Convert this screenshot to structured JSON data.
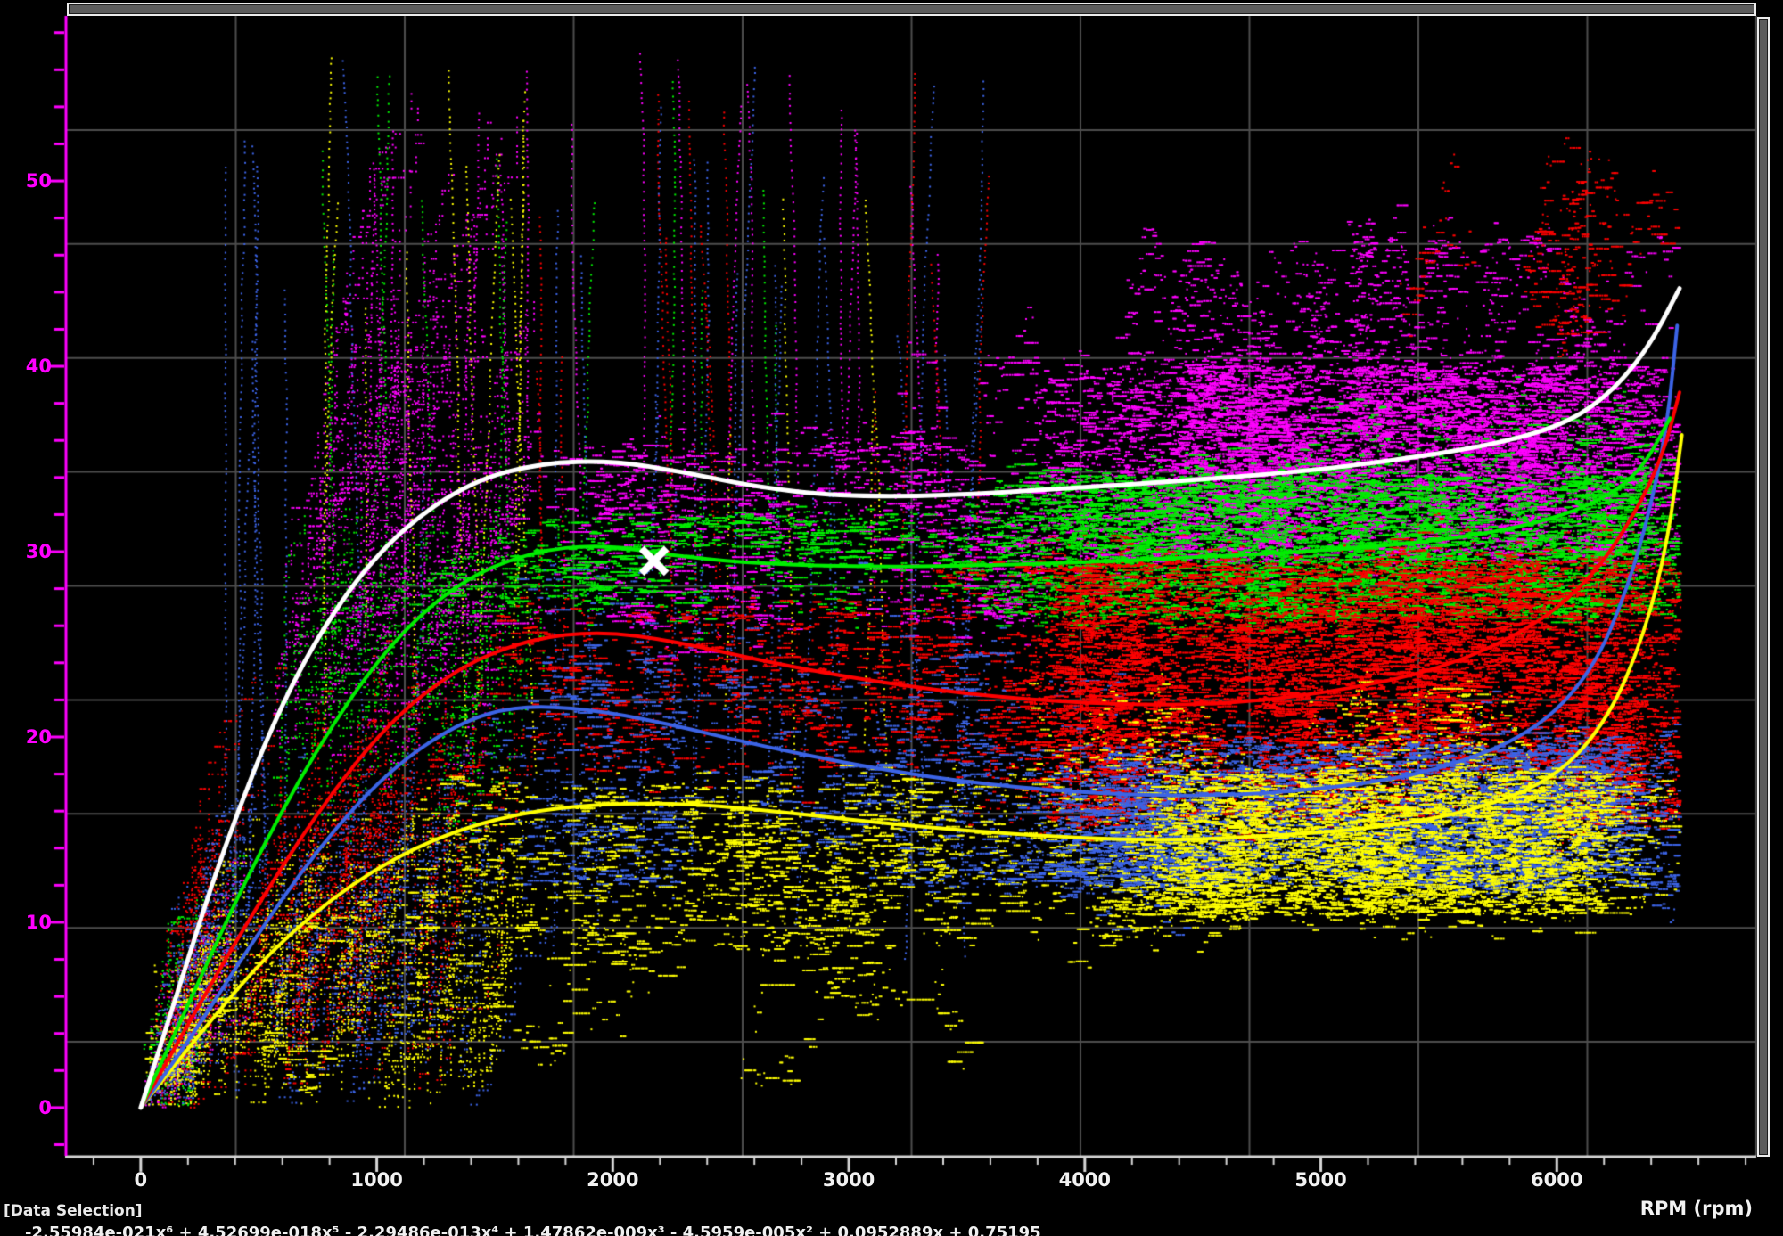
{
  "window": {
    "data_selection_label": "[Data Selection]",
    "formula": "-2.55984e-021x⁶ + 4.52699e-018x⁵ - 2.29486e-013x⁴ + 1.47862e-009x³ - 4.5959e-005x² + 0.0952889x + 0.75195"
  },
  "chart_data": {
    "type": "scatter",
    "title": "",
    "xlabel": "RPM (rpm)",
    "ylabel": "",
    "xlim": [
      -313,
      6845
    ],
    "ylim": [
      -2.6,
      58.9
    ],
    "x_ticks": [
      0,
      1000,
      2000,
      3000,
      4000,
      5000,
      6000
    ],
    "x_minor_step": 200,
    "y_ticks": [
      0,
      10,
      20,
      30,
      40,
      50
    ],
    "y_minor_step": 2,
    "grid": {
      "rows": 10,
      "cols": 10,
      "color": "#4d4d4d"
    },
    "axis_colors": {
      "x": "#d6d6d6",
      "y": "#ff00ff"
    },
    "palette": {
      "magenta": "#ff00ff",
      "green": "#00ee00",
      "red": "#ff0000",
      "blue": "#3c64e6",
      "yellow": "#ffff00",
      "white": "#ffffff"
    },
    "marker": {
      "shape": "x",
      "color": "#ffffff",
      "x": 2175,
      "y": 29.5
    },
    "trend_lines": [
      {
        "name": "yellow-trend",
        "color": "yellow",
        "width": 4,
        "points": [
          [
            0,
            0
          ],
          [
            250,
            4
          ],
          [
            550,
            8.5
          ],
          [
            900,
            12.2
          ],
          [
            1250,
            14.6
          ],
          [
            1600,
            15.9
          ],
          [
            1950,
            16.4
          ],
          [
            2350,
            16.4
          ],
          [
            2750,
            15.9
          ],
          [
            3250,
            15.2
          ],
          [
            3750,
            14.7
          ],
          [
            4250,
            14.4
          ],
          [
            4750,
            14.6
          ],
          [
            5250,
            15.1
          ],
          [
            5650,
            16
          ],
          [
            6000,
            17.8
          ],
          [
            6220,
            21
          ],
          [
            6370,
            25.5
          ],
          [
            6470,
            30.5
          ],
          [
            6530,
            36.3
          ]
        ]
      },
      {
        "name": "blue-trend",
        "color": "blue",
        "width": 4,
        "points": [
          [
            0,
            0
          ],
          [
            200,
            3.5
          ],
          [
            450,
            8.5
          ],
          [
            750,
            14
          ],
          [
            1050,
            18.2
          ],
          [
            1350,
            20.8
          ],
          [
            1600,
            21.7
          ],
          [
            1900,
            21.5
          ],
          [
            2200,
            20.8
          ],
          [
            2600,
            19.6
          ],
          [
            3100,
            18.3
          ],
          [
            3600,
            17.4
          ],
          [
            4100,
            16.9
          ],
          [
            4600,
            16.8
          ],
          [
            5100,
            17.3
          ],
          [
            5500,
            18.2
          ],
          [
            5900,
            20.2
          ],
          [
            6150,
            23.5
          ],
          [
            6300,
            28
          ],
          [
            6400,
            32.5
          ],
          [
            6470,
            37
          ],
          [
            6510,
            42.2
          ]
        ]
      },
      {
        "name": "red-trend",
        "color": "red",
        "width": 4,
        "points": [
          [
            0,
            0
          ],
          [
            200,
            4.5
          ],
          [
            450,
            10
          ],
          [
            750,
            16
          ],
          [
            1050,
            20.8
          ],
          [
            1350,
            23.8
          ],
          [
            1650,
            25.3
          ],
          [
            1950,
            25.7
          ],
          [
            2250,
            25.2
          ],
          [
            2600,
            24.2
          ],
          [
            3000,
            23.2
          ],
          [
            3500,
            22.3
          ],
          [
            4000,
            21.8
          ],
          [
            4500,
            21.7
          ],
          [
            5000,
            22.3
          ],
          [
            5500,
            23.6
          ],
          [
            5900,
            25.9
          ],
          [
            6150,
            28.6
          ],
          [
            6330,
            32
          ],
          [
            6450,
            35.2
          ],
          [
            6520,
            38.6
          ]
        ]
      },
      {
        "name": "green-trend",
        "color": "green",
        "width": 4,
        "points": [
          [
            0,
            0
          ],
          [
            200,
            5.5
          ],
          [
            450,
            12.5
          ],
          [
            750,
            19.5
          ],
          [
            1050,
            25
          ],
          [
            1350,
            28.4
          ],
          [
            1650,
            30
          ],
          [
            1950,
            30.4
          ],
          [
            2250,
            29.8
          ],
          [
            2550,
            29.4
          ],
          [
            2950,
            29.2
          ],
          [
            3450,
            29.2
          ],
          [
            3950,
            29.4
          ],
          [
            4450,
            29.7
          ],
          [
            4950,
            30
          ],
          [
            5450,
            30.5
          ],
          [
            5850,
            31.3
          ],
          [
            6150,
            32.5
          ],
          [
            6350,
            34.2
          ],
          [
            6480,
            37.2
          ]
        ]
      },
      {
        "name": "white-trend",
        "color": "white",
        "width": 5,
        "points": [
          [
            0,
            0
          ],
          [
            150,
            6
          ],
          [
            350,
            14
          ],
          [
            600,
            22
          ],
          [
            850,
            27.5
          ],
          [
            1100,
            31.2
          ],
          [
            1400,
            33.8
          ],
          [
            1700,
            34.8
          ],
          [
            2000,
            34.9
          ],
          [
            2300,
            34.3
          ],
          [
            2600,
            33.5
          ],
          [
            2950,
            33
          ],
          [
            3400,
            33
          ],
          [
            3900,
            33.4
          ],
          [
            4400,
            33.8
          ],
          [
            4900,
            34.3
          ],
          [
            5300,
            34.9
          ],
          [
            5700,
            35.7
          ],
          [
            6000,
            36.7
          ],
          [
            6200,
            38.2
          ],
          [
            6380,
            40.8
          ],
          [
            6520,
            44.2
          ]
        ]
      }
    ],
    "scatter_clusters": [
      {
        "color": "magenta",
        "kind": "rise",
        "count": 18,
        "x": [
          20,
          220
        ],
        "y": [
          0,
          2
        ],
        "yend": [
          4,
          14
        ]
      },
      {
        "color": "green",
        "kind": "rise",
        "count": 18,
        "x": [
          20,
          220
        ],
        "y": [
          0,
          2
        ],
        "yend": [
          4,
          14
        ]
      },
      {
        "color": "red",
        "kind": "rise",
        "count": 22,
        "x": [
          20,
          230
        ],
        "y": [
          0,
          2
        ],
        "yend": [
          4,
          16
        ]
      },
      {
        "color": "blue",
        "kind": "rise",
        "count": 22,
        "x": [
          20,
          230
        ],
        "y": [
          0,
          2
        ],
        "yend": [
          4,
          14
        ]
      },
      {
        "color": "yellow",
        "kind": "rise",
        "count": 25,
        "x": [
          20,
          240
        ],
        "y": [
          0,
          2
        ],
        "yend": [
          3,
          12
        ]
      },
      {
        "color": "magenta",
        "kind": "rise",
        "count": 55,
        "x": [
          550,
          1450
        ],
        "y": [
          17,
          27
        ],
        "yend": [
          30,
          44
        ]
      },
      {
        "color": "magenta",
        "kind": "rise",
        "count": 12,
        "x": [
          600,
          1150
        ],
        "y": [
          26,
          34
        ],
        "yend": [
          45,
          56
        ]
      },
      {
        "color": "green",
        "kind": "rise",
        "count": 45,
        "x": [
          520,
          1500
        ],
        "y": [
          14,
          24
        ],
        "yend": [
          27,
          33
        ]
      },
      {
        "color": "red",
        "kind": "rise",
        "count": 60,
        "x": [
          120,
          1300
        ],
        "y": [
          1,
          8
        ],
        "yend": [
          15,
          26
        ]
      },
      {
        "color": "blue",
        "kind": "rise",
        "count": 60,
        "x": [
          120,
          1400
        ],
        "y": [
          0,
          6
        ],
        "yend": [
          10,
          21
        ]
      },
      {
        "color": "yellow",
        "kind": "rise",
        "count": 70,
        "x": [
          120,
          1500
        ],
        "y": [
          0,
          5
        ],
        "yend": [
          8,
          16.5
        ]
      },
      {
        "color": "magenta",
        "kind": "wisp",
        "count": 20,
        "x": [
          850,
          3400
        ],
        "y": [
          30,
          36
        ],
        "yend": [
          44,
          57
        ]
      },
      {
        "color": "green",
        "kind": "wisp",
        "count": 12,
        "x": [
          700,
          3100
        ],
        "y": [
          29,
          33
        ],
        "yend": [
          42,
          56
        ]
      },
      {
        "color": "red",
        "kind": "wisp",
        "count": 13,
        "x": [
          1400,
          3600
        ],
        "y": [
          24,
          30
        ],
        "yend": [
          38,
          56
        ]
      },
      {
        "color": "blue",
        "kind": "wisp",
        "count": 28,
        "x": [
          300,
          3500
        ],
        "y": [
          8,
          16
        ],
        "yend": [
          30,
          57
        ]
      },
      {
        "color": "yellow",
        "kind": "wisp",
        "count": 10,
        "x": [
          700,
          1700
        ],
        "y": [
          18,
          28
        ],
        "yend": [
          42,
          57
        ]
      },
      {
        "color": "yellow",
        "kind": "wisp",
        "count": 4,
        "x": [
          2400,
          3200
        ],
        "y": [
          16,
          22
        ],
        "yend": [
          35,
          50
        ]
      },
      {
        "color": "magenta",
        "kind": "wander",
        "count": 48,
        "x": [
          1400,
          3900
        ],
        "y": [
          27.5,
          34.5
        ],
        "len": [
          300,
          1400
        ],
        "pjump": 0.22,
        "vjump": [
          0.3,
          2.2
        ]
      },
      {
        "color": "green",
        "kind": "wander",
        "count": 42,
        "x": [
          1500,
          3850
        ],
        "y": [
          27.5,
          31.5
        ],
        "len": [
          300,
          1200
        ],
        "pjump": 0.2,
        "vjump": [
          0.3,
          1.6
        ]
      },
      {
        "color": "red",
        "kind": "wander",
        "count": 45,
        "x": [
          1500,
          3850
        ],
        "y": [
          19.5,
          26
        ],
        "len": [
          300,
          1200
        ],
        "pjump": 0.22,
        "vjump": [
          0.3,
          2
        ]
      },
      {
        "color": "blue",
        "kind": "wander",
        "count": 42,
        "x": [
          1500,
          3900
        ],
        "y": [
          13.5,
          21.5
        ],
        "len": [
          300,
          1200
        ],
        "pjump": 0.22,
        "vjump": [
          0.3,
          2
        ]
      },
      {
        "color": "yellow",
        "kind": "wander",
        "count": 60,
        "x": [
          1400,
          4300
        ],
        "y": [
          10,
          16.5
        ],
        "len": [
          300,
          1300
        ],
        "pjump": 0.22,
        "vjump": [
          0.3,
          1.8
        ]
      },
      {
        "color": "blue",
        "kind": "wander",
        "count": 15,
        "x": [
          1600,
          3500
        ],
        "y": [
          20,
          28
        ],
        "len": [
          200,
          800
        ],
        "pjump": 0.25,
        "vjump": [
          0.3,
          2
        ]
      },
      {
        "color": "yellow",
        "kind": "wander",
        "count": 16,
        "x": [
          250,
          3600
        ],
        "y": [
          2,
          9
        ],
        "len": [
          200,
          900
        ],
        "pjump": 0.2,
        "vjump": [
          0.3,
          1.5
        ]
      },
      {
        "color": "magenta",
        "kind": "wander",
        "count": 240,
        "x": [
          3950,
          6400
        ],
        "y": [
          31,
          38.5
        ],
        "len": [
          300,
          1300
        ],
        "pjump": 0.25,
        "vjump": [
          0.3,
          2
        ]
      },
      {
        "color": "magenta",
        "kind": "wander",
        "count": 55,
        "x": [
          4300,
          6350
        ],
        "y": [
          38,
          45.5
        ],
        "len": [
          150,
          700
        ],
        "pjump": 0.3,
        "vjump": [
          0.3,
          2
        ]
      },
      {
        "color": "green",
        "kind": "wander",
        "count": 215,
        "x": [
          3850,
          6400
        ],
        "y": [
          27.5,
          33
        ],
        "len": [
          300,
          1300
        ],
        "pjump": 0.25,
        "vjump": [
          0.3,
          1.8
        ]
      },
      {
        "color": "green",
        "kind": "wander",
        "count": 18,
        "x": [
          4600,
          6350
        ],
        "y": [
          33,
          38
        ],
        "len": [
          200,
          600
        ],
        "pjump": 0.3,
        "vjump": [
          0.3,
          1.8
        ]
      },
      {
        "color": "red",
        "kind": "wander",
        "count": 290,
        "x": [
          3800,
          6420
        ],
        "y": [
          17.5,
          27.5
        ],
        "len": [
          300,
          1400
        ],
        "pjump": 0.25,
        "vjump": [
          0.3,
          2.2
        ]
      },
      {
        "color": "red",
        "kind": "wander",
        "count": 12,
        "x": [
          5200,
          6400
        ],
        "y": [
          43,
          50
        ],
        "len": [
          300,
          800
        ],
        "pjump": 0.3,
        "vjump": [
          0.3,
          1.8
        ]
      },
      {
        "color": "blue",
        "kind": "wander",
        "count": 225,
        "x": [
          3900,
          6280
        ],
        "y": [
          13,
          18.5
        ],
        "len": [
          300,
          1300
        ],
        "pjump": 0.25,
        "vjump": [
          0.3,
          1.8
        ]
      },
      {
        "color": "yellow",
        "kind": "wander",
        "count": 175,
        "x": [
          4300,
          6150
        ],
        "y": [
          11.5,
          17
        ],
        "len": [
          300,
          1200
        ],
        "pjump": 0.25,
        "vjump": [
          0.3,
          1.8
        ]
      },
      {
        "color": "yellow",
        "kind": "wander",
        "count": 25,
        "x": [
          3800,
          6100
        ],
        "y": [
          17,
          22
        ],
        "len": [
          200,
          800
        ],
        "pjump": 0.25,
        "vjump": [
          0.3,
          1.8
        ]
      }
    ]
  }
}
